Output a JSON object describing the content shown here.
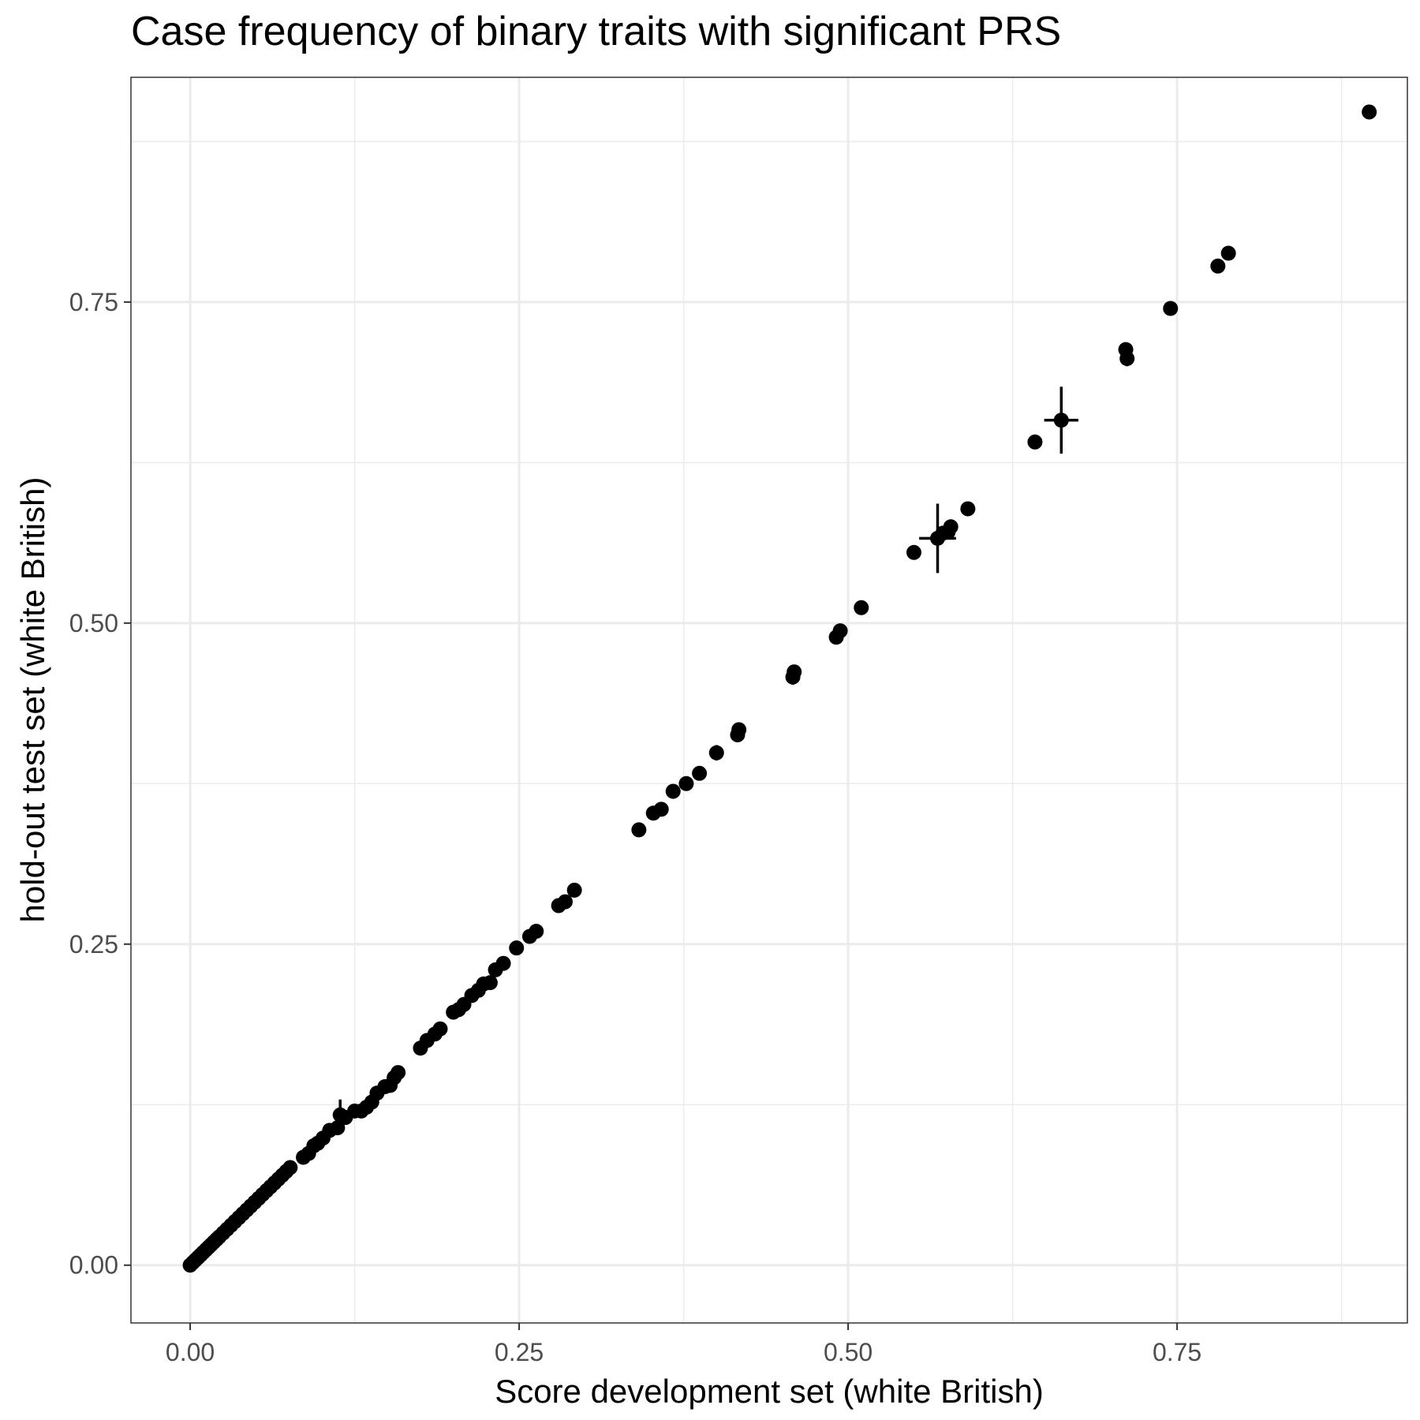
{
  "chart_data": {
    "type": "scatter",
    "title": "Case frequency of binary traits with significant PRS",
    "xlabel": "Score development set (white British)",
    "ylabel": "hold-out test set (white British)",
    "xlim": [
      -0.045,
      0.925
    ],
    "ylim": [
      -0.045,
      0.925
    ],
    "x_ticks": [
      {
        "value": 0.0,
        "label": "0.00"
      },
      {
        "value": 0.25,
        "label": "0.25"
      },
      {
        "value": 0.5,
        "label": "0.50"
      },
      {
        "value": 0.75,
        "label": "0.75"
      }
    ],
    "y_ticks": [
      {
        "value": 0.0,
        "label": "0.00"
      },
      {
        "value": 0.25,
        "label": "0.25"
      },
      {
        "value": 0.5,
        "label": "0.50"
      },
      {
        "value": 0.75,
        "label": "0.75"
      }
    ],
    "grid": true,
    "point_color": "#000000",
    "points": [
      {
        "x": 0.0,
        "y": 0.0
      },
      {
        "x": 0.002,
        "y": 0.002
      },
      {
        "x": 0.004,
        "y": 0.004
      },
      {
        "x": 0.006,
        "y": 0.006
      },
      {
        "x": 0.008,
        "y": 0.008
      },
      {
        "x": 0.01,
        "y": 0.01
      },
      {
        "x": 0.012,
        "y": 0.012
      },
      {
        "x": 0.014,
        "y": 0.014
      },
      {
        "x": 0.016,
        "y": 0.016
      },
      {
        "x": 0.018,
        "y": 0.018
      },
      {
        "x": 0.02,
        "y": 0.02
      },
      {
        "x": 0.022,
        "y": 0.022
      },
      {
        "x": 0.025,
        "y": 0.025
      },
      {
        "x": 0.028,
        "y": 0.028
      },
      {
        "x": 0.031,
        "y": 0.031
      },
      {
        "x": 0.034,
        "y": 0.034
      },
      {
        "x": 0.037,
        "y": 0.037
      },
      {
        "x": 0.04,
        "y": 0.04
      },
      {
        "x": 0.043,
        "y": 0.043
      },
      {
        "x": 0.046,
        "y": 0.046
      },
      {
        "x": 0.049,
        "y": 0.049
      },
      {
        "x": 0.052,
        "y": 0.052
      },
      {
        "x": 0.055,
        "y": 0.055
      },
      {
        "x": 0.058,
        "y": 0.058
      },
      {
        "x": 0.061,
        "y": 0.061
      },
      {
        "x": 0.064,
        "y": 0.064
      },
      {
        "x": 0.067,
        "y": 0.067
      },
      {
        "x": 0.07,
        "y": 0.07
      },
      {
        "x": 0.073,
        "y": 0.073
      },
      {
        "x": 0.076,
        "y": 0.076
      },
      {
        "x": 0.086,
        "y": 0.084
      },
      {
        "x": 0.09,
        "y": 0.087
      },
      {
        "x": 0.094,
        "y": 0.093
      },
      {
        "x": 0.097,
        "y": 0.095
      },
      {
        "x": 0.101,
        "y": 0.099
      },
      {
        "x": 0.106,
        "y": 0.105
      },
      {
        "x": 0.112,
        "y": 0.107
      },
      {
        "x": 0.114,
        "y": 0.117,
        "yerr": 0.012
      },
      {
        "x": 0.118,
        "y": 0.115
      },
      {
        "x": 0.125,
        "y": 0.12
      },
      {
        "x": 0.13,
        "y": 0.12
      },
      {
        "x": 0.134,
        "y": 0.123
      },
      {
        "x": 0.138,
        "y": 0.127
      },
      {
        "x": 0.142,
        "y": 0.134
      },
      {
        "x": 0.148,
        "y": 0.139
      },
      {
        "x": 0.152,
        "y": 0.14
      },
      {
        "x": 0.155,
        "y": 0.146
      },
      {
        "x": 0.158,
        "y": 0.15
      },
      {
        "x": 0.175,
        "y": 0.169
      },
      {
        "x": 0.18,
        "y": 0.175
      },
      {
        "x": 0.186,
        "y": 0.18
      },
      {
        "x": 0.19,
        "y": 0.184
      },
      {
        "x": 0.2,
        "y": 0.197
      },
      {
        "x": 0.204,
        "y": 0.199
      },
      {
        "x": 0.208,
        "y": 0.203
      },
      {
        "x": 0.214,
        "y": 0.21
      },
      {
        "x": 0.219,
        "y": 0.214
      },
      {
        "x": 0.223,
        "y": 0.219
      },
      {
        "x": 0.228,
        "y": 0.22
      },
      {
        "x": 0.232,
        "y": 0.23
      },
      {
        "x": 0.238,
        "y": 0.235
      },
      {
        "x": 0.248,
        "y": 0.247
      },
      {
        "x": 0.258,
        "y": 0.256
      },
      {
        "x": 0.263,
        "y": 0.26
      },
      {
        "x": 0.28,
        "y": 0.28
      },
      {
        "x": 0.285,
        "y": 0.283
      },
      {
        "x": 0.292,
        "y": 0.292
      },
      {
        "x": 0.341,
        "y": 0.339
      },
      {
        "x": 0.352,
        "y": 0.352
      },
      {
        "x": 0.358,
        "y": 0.355
      },
      {
        "x": 0.367,
        "y": 0.369
      },
      {
        "x": 0.377,
        "y": 0.375
      },
      {
        "x": 0.387,
        "y": 0.383
      },
      {
        "x": 0.4,
        "y": 0.399,
        "yerr": 0.006
      },
      {
        "x": 0.416,
        "y": 0.413
      },
      {
        "x": 0.417,
        "y": 0.417
      },
      {
        "x": 0.458,
        "y": 0.458,
        "yerr": 0.006
      },
      {
        "x": 0.459,
        "y": 0.462
      },
      {
        "x": 0.491,
        "y": 0.489
      },
      {
        "x": 0.494,
        "y": 0.494
      },
      {
        "x": 0.51,
        "y": 0.512
      },
      {
        "x": 0.55,
        "y": 0.555
      },
      {
        "x": 0.568,
        "y": 0.566,
        "xerr": 0.014,
        "yerr": 0.027
      },
      {
        "x": 0.572,
        "y": 0.57
      },
      {
        "x": 0.576,
        "y": 0.571
      },
      {
        "x": 0.578,
        "y": 0.575
      },
      {
        "x": 0.591,
        "y": 0.589
      },
      {
        "x": 0.642,
        "y": 0.641
      },
      {
        "x": 0.662,
        "y": 0.658,
        "xerr": 0.013,
        "yerr": 0.026
      },
      {
        "x": 0.711,
        "y": 0.713
      },
      {
        "x": 0.712,
        "y": 0.706,
        "yerr": 0.006
      },
      {
        "x": 0.745,
        "y": 0.745
      },
      {
        "x": 0.781,
        "y": 0.778
      },
      {
        "x": 0.789,
        "y": 0.788
      },
      {
        "x": 0.896,
        "y": 0.898
      }
    ]
  }
}
